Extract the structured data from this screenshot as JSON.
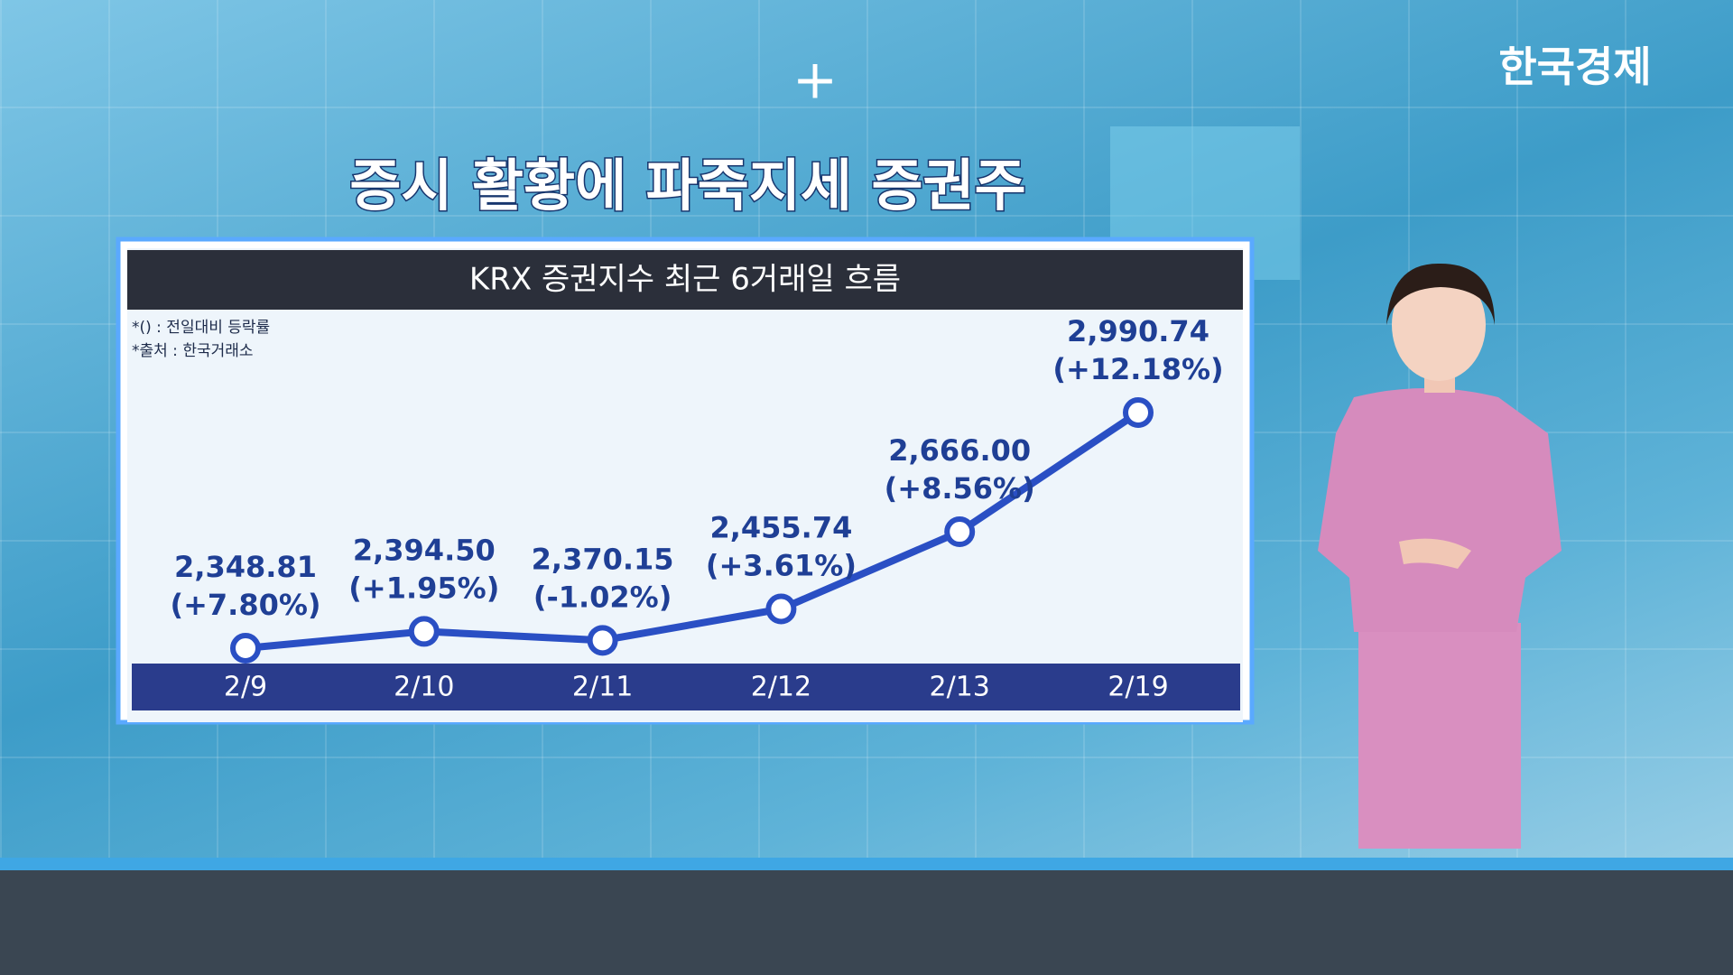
{
  "logo": "한국경제",
  "headline": "증시 활황에 파죽지세 증권주",
  "chart_data": {
    "type": "line",
    "title": "KRX 증권지수 최근 6거래일 흐름",
    "notes": [
      "*() : 전일대비 등락률",
      "*출처 : 한국거래소"
    ],
    "categories": [
      "2/9",
      "2/10",
      "2/11",
      "2/12",
      "2/13",
      "2/19"
    ],
    "values": [
      2348.81,
      2394.5,
      2370.15,
      2455.74,
      2666.0,
      2990.74
    ],
    "value_labels": [
      "2,348.81",
      "2,394.50",
      "2,370.15",
      "2,455.74",
      "2,666.00",
      "2,990.74"
    ],
    "changes": {
      "values": [
        7.8,
        1.95,
        -1.02,
        3.61,
        8.56,
        12.18
      ],
      "value_labels": [
        "(+7.80%)",
        "(+1.95%)",
        "(-1.02%)",
        "(+3.61%)",
        "(+8.56%)",
        "(+12.18%)"
      ]
    },
    "color": "#2a4fc4"
  }
}
